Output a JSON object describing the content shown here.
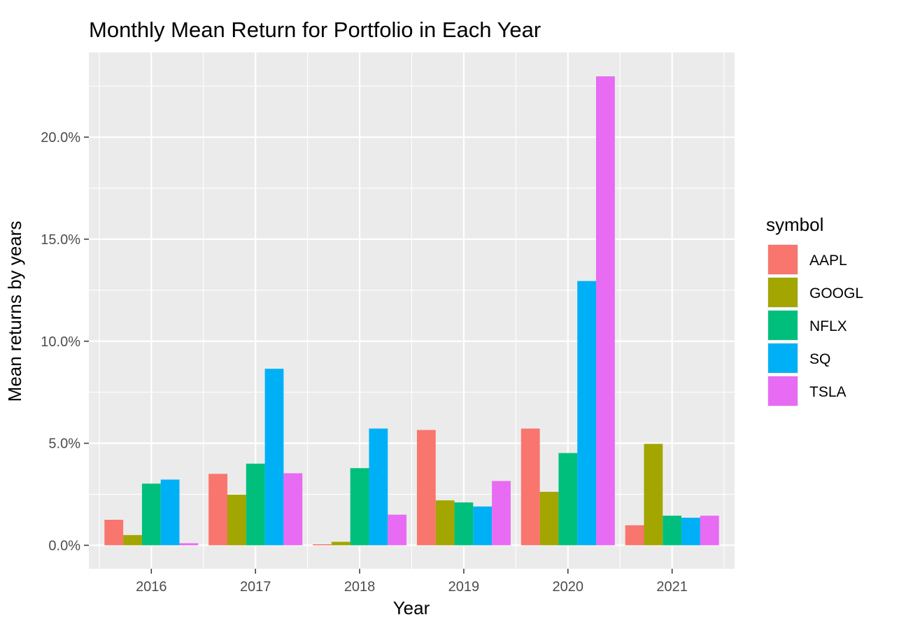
{
  "chart_data": {
    "type": "bar",
    "title": "Monthly Mean Return for Portfolio in Each Year",
    "xlabel": "Year",
    "ylabel": "Mean returns by years",
    "categories": [
      "2016",
      "2017",
      "2018",
      "2019",
      "2020",
      "2021"
    ],
    "series": [
      {
        "name": "AAPL",
        "color": "#F8766D",
        "values": [
          0.0125,
          0.035,
          0.0005,
          0.0565,
          0.0572,
          0.0098
        ]
      },
      {
        "name": "GOOGL",
        "color": "#A3A500",
        "values": [
          0.005,
          0.0248,
          0.0017,
          0.022,
          0.0262,
          0.0497
        ]
      },
      {
        "name": "NFLX",
        "color": "#00BF7D",
        "values": [
          0.0302,
          0.04,
          0.0378,
          0.021,
          0.0452,
          0.0145
        ]
      },
      {
        "name": "SQ",
        "color": "#00B0F6",
        "values": [
          0.0322,
          0.0865,
          0.0572,
          0.019,
          0.1295,
          0.0135
        ]
      },
      {
        "name": "TSLA",
        "color": "#E76BF3",
        "values": [
          0.001,
          0.0353,
          0.015,
          0.0315,
          0.2298,
          0.0145
        ]
      }
    ],
    "ylim": [
      -0.0115,
      0.2415
    ],
    "yticks": [
      0,
      0.05,
      0.1,
      0.15,
      0.2
    ],
    "ytick_labels": [
      "0.0%",
      "5.0%",
      "10.0%",
      "15.0%",
      "20.0%"
    ],
    "legend_title": "symbol",
    "legend_position": "right",
    "grid": true,
    "panel_background": "#EBEBEB",
    "grid_color": "#FFFFFF"
  }
}
